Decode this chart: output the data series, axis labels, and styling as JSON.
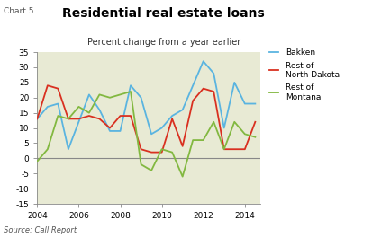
{
  "title": "Residential real estate loans",
  "subtitle": "Percent change from a year earlier",
  "chart_label": "Chart 5",
  "source": "Source: Call Report",
  "ylim": [
    -15,
    35
  ],
  "yticks": [
    -15,
    -10,
    -5,
    0,
    5,
    10,
    15,
    20,
    25,
    30,
    35
  ],
  "xlim": [
    2004,
    2014.75
  ],
  "xticks": [
    2004,
    2006,
    2008,
    2010,
    2012,
    2014
  ],
  "bg_color": "#e8ead4",
  "bakken_color": "#5ab4e0",
  "nd_color": "#d93020",
  "mt_color": "#82b840",
  "bakken": {
    "x": [
      2004.0,
      2004.5,
      2005.0,
      2005.5,
      2006.0,
      2006.5,
      2007.0,
      2007.5,
      2008.0,
      2008.5,
      2009.0,
      2009.5,
      2010.0,
      2010.5,
      2011.0,
      2011.5,
      2012.0,
      2012.5,
      2013.0,
      2013.5,
      2014.0,
      2014.5
    ],
    "y": [
      13,
      17,
      18,
      3,
      12,
      21,
      16,
      9,
      9,
      24,
      20,
      8,
      10,
      14,
      16,
      24,
      32,
      28,
      10,
      25,
      18,
      18
    ]
  },
  "nd": {
    "x": [
      2004.0,
      2004.5,
      2005.0,
      2005.5,
      2006.0,
      2006.5,
      2007.0,
      2007.5,
      2008.0,
      2008.5,
      2009.0,
      2009.5,
      2010.0,
      2010.5,
      2011.0,
      2011.5,
      2012.0,
      2012.5,
      2013.0,
      2013.5,
      2014.0,
      2014.5
    ],
    "y": [
      13,
      24,
      23,
      13,
      13,
      14,
      13,
      10,
      14,
      14,
      3,
      2,
      2,
      13,
      4,
      19,
      23,
      22,
      3,
      3,
      3,
      12
    ]
  },
  "mt": {
    "x": [
      2004.0,
      2004.5,
      2005.0,
      2005.5,
      2006.0,
      2006.5,
      2007.0,
      2007.5,
      2008.0,
      2008.5,
      2009.0,
      2009.5,
      2010.0,
      2010.5,
      2011.0,
      2011.5,
      2012.0,
      2012.5,
      2013.0,
      2013.5,
      2014.0,
      2014.5
    ],
    "y": [
      -1,
      3,
      14,
      13,
      17,
      15,
      21,
      20,
      21,
      22,
      -2,
      -4,
      3,
      2,
      -6,
      6,
      6,
      12,
      3,
      12,
      8,
      7
    ]
  },
  "legend_labels": [
    "Bakken",
    "Rest of\nNorth Dakota",
    "Rest of\nMontana"
  ],
  "tick_fontsize": 6.5,
  "title_fontsize": 10,
  "subtitle_fontsize": 7,
  "label_fontsize": 6.5,
  "source_fontsize": 6,
  "linewidth": 1.3
}
